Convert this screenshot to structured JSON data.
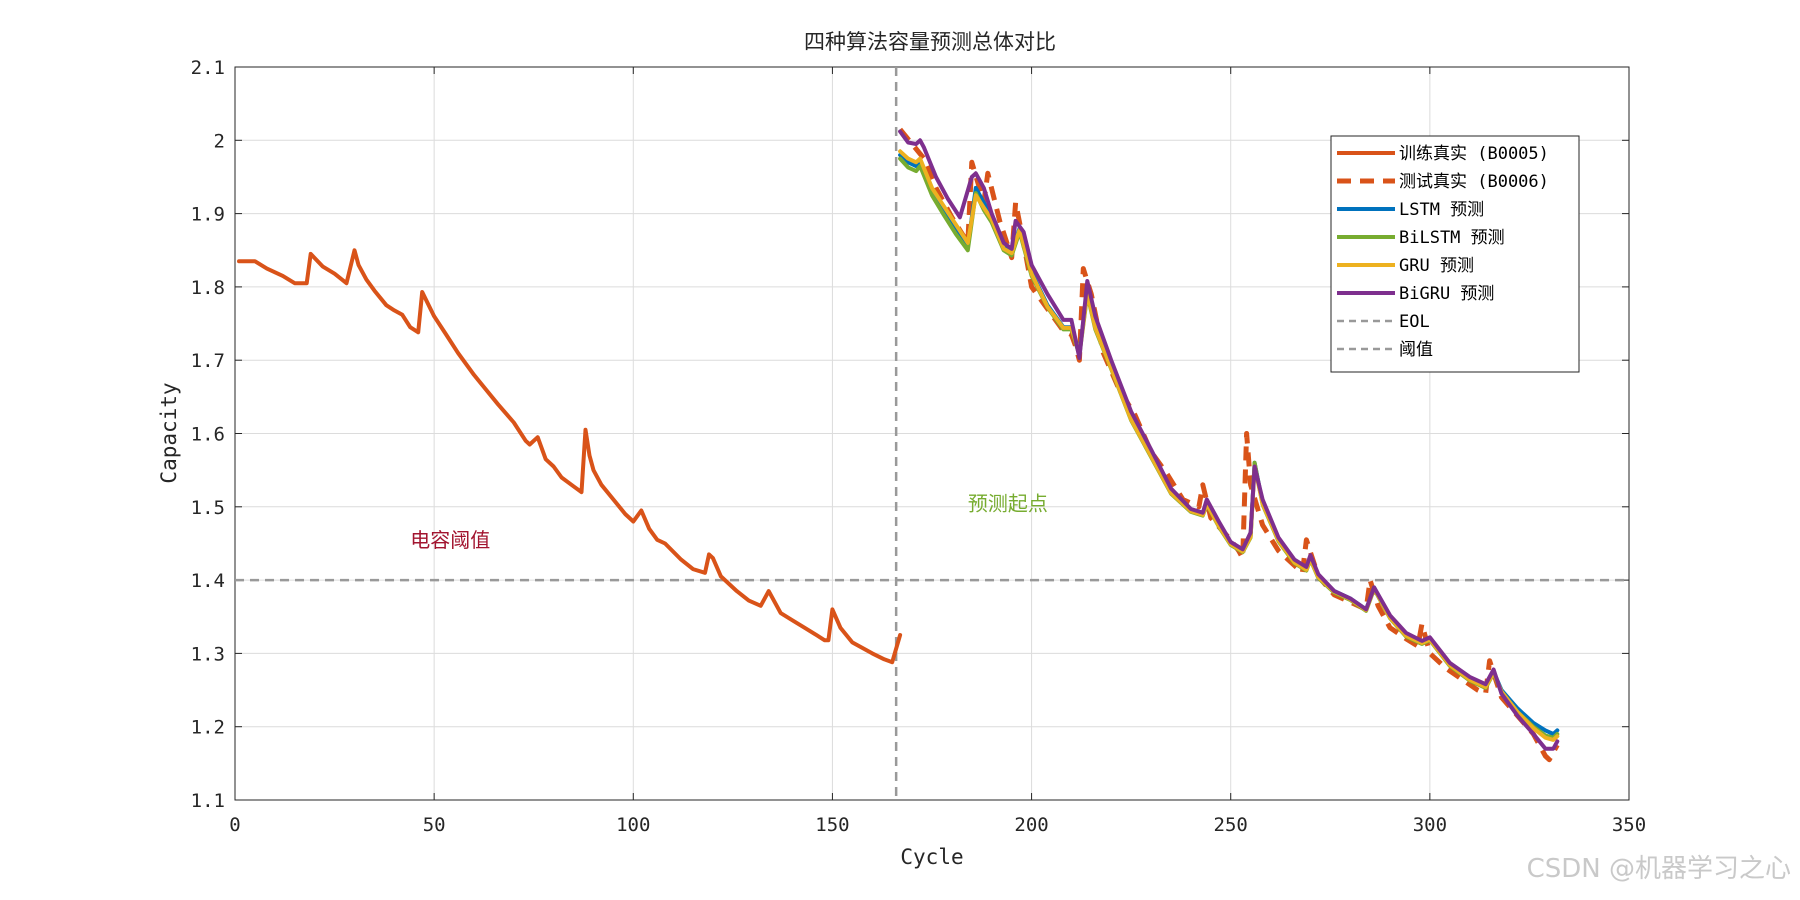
{
  "chart_data": {
    "type": "line",
    "title": "四种算法容量预测总体对比",
    "xlabel": "Cycle",
    "ylabel": "Capacity",
    "xlim": [
      0,
      350
    ],
    "ylim": [
      1.1,
      2.1
    ],
    "xticks": [
      0,
      50,
      100,
      150,
      200,
      250,
      300,
      350
    ],
    "yticks": [
      1.1,
      1.2,
      1.3,
      1.4,
      1.5,
      1.6,
      1.7,
      1.8,
      1.9,
      2.0,
      2.1
    ],
    "ytick_labels": [
      "1.1",
      "1.2",
      "1.3",
      "1.4",
      "1.5",
      "1.6",
      "1.7",
      "1.8",
      "1.9",
      "2",
      "2.1"
    ],
    "grid": true,
    "legend_position": "top-right",
    "annotations": [
      {
        "text": "电容阈值",
        "x": 44,
        "y": 1.445,
        "color": "#a2142f"
      },
      {
        "text": "预测起点",
        "x": 184,
        "y": 1.495,
        "color": "#77ac30"
      }
    ],
    "reference_lines": [
      {
        "name": "EOL",
        "orientation": "horizontal",
        "value": 1.4,
        "color": "#999999",
        "style": "dashed"
      },
      {
        "name": "阈值",
        "orientation": "vertical",
        "value": 166,
        "color": "#999999",
        "style": "dashed"
      }
    ],
    "series": [
      {
        "name": "训练真实 (B0005)",
        "color": "#d95319",
        "style": "solid",
        "x": [
          1,
          5,
          8,
          12,
          15,
          18,
          19,
          22,
          25,
          28,
          30,
          31,
          33,
          35,
          38,
          40,
          42,
          44,
          46,
          47,
          50,
          53,
          56,
          60,
          63,
          66,
          70,
          73,
          74,
          76,
          78,
          80,
          82,
          85,
          87,
          88,
          89,
          90,
          92,
          95,
          98,
          100,
          102,
          104,
          106,
          108,
          112,
          115,
          118,
          119,
          120,
          122,
          126,
          129,
          132,
          134,
          137,
          140,
          143,
          146,
          148,
          149,
          150,
          152,
          155,
          160,
          163,
          165,
          167
        ],
        "y": [
          1.835,
          1.835,
          1.825,
          1.815,
          1.805,
          1.805,
          1.845,
          1.828,
          1.818,
          1.805,
          1.85,
          1.83,
          1.81,
          1.795,
          1.775,
          1.768,
          1.762,
          1.745,
          1.738,
          1.793,
          1.76,
          1.735,
          1.71,
          1.68,
          1.66,
          1.64,
          1.615,
          1.59,
          1.585,
          1.595,
          1.565,
          1.555,
          1.54,
          1.528,
          1.52,
          1.605,
          1.57,
          1.55,
          1.53,
          1.51,
          1.49,
          1.48,
          1.495,
          1.47,
          1.455,
          1.45,
          1.428,
          1.415,
          1.41,
          1.435,
          1.43,
          1.405,
          1.385,
          1.372,
          1.365,
          1.385,
          1.355,
          1.345,
          1.335,
          1.325,
          1.318,
          1.318,
          1.36,
          1.335,
          1.315,
          1.3,
          1.292,
          1.288,
          1.325
        ]
      },
      {
        "name": "测试真实 (B0006)",
        "color": "#d95319",
        "style": "dashed",
        "x": [
          167,
          170,
          173,
          176,
          180,
          184,
          185,
          188,
          189,
          192,
          195,
          196,
          198,
          200,
          204,
          208,
          210,
          211,
          212,
          213,
          215,
          218,
          222,
          226,
          230,
          234,
          238,
          242,
          243,
          245,
          250,
          252,
          253,
          254,
          255,
          258,
          262,
          266,
          268,
          269,
          272,
          276,
          280,
          284,
          285,
          287,
          290,
          294,
          297,
          298,
          300,
          304,
          308,
          312,
          314,
          315,
          318,
          322,
          326,
          329,
          330,
          332
        ],
        "y": [
          2.015,
          1.995,
          1.975,
          1.935,
          1.895,
          1.86,
          1.97,
          1.915,
          1.955,
          1.89,
          1.84,
          1.915,
          1.86,
          1.8,
          1.77,
          1.74,
          1.735,
          1.72,
          1.7,
          1.825,
          1.79,
          1.71,
          1.66,
          1.625,
          1.575,
          1.545,
          1.51,
          1.5,
          1.53,
          1.485,
          1.455,
          1.44,
          1.43,
          1.6,
          1.53,
          1.475,
          1.44,
          1.42,
          1.41,
          1.455,
          1.405,
          1.38,
          1.37,
          1.36,
          1.4,
          1.365,
          1.335,
          1.32,
          1.31,
          1.34,
          1.3,
          1.28,
          1.265,
          1.25,
          1.245,
          1.29,
          1.24,
          1.215,
          1.19,
          1.16,
          1.155,
          1.175
        ]
      },
      {
        "name": "LSTM 预测",
        "color": "#0072bd",
        "style": "solid",
        "x": [
          167,
          169,
          171,
          172,
          175,
          178,
          181,
          184,
          186,
          188,
          190,
          193,
          195,
          197,
          200,
          204,
          208,
          210,
          212,
          214,
          216,
          220,
          225,
          230,
          235,
          240,
          243,
          244,
          247,
          250,
          253,
          255,
          256,
          258,
          262,
          266,
          269,
          270,
          272,
          276,
          280,
          284,
          286,
          290,
          294,
          298,
          300,
          305,
          310,
          314,
          316,
          318,
          322,
          326,
          329,
          331,
          332
        ],
        "y": [
          1.98,
          1.97,
          1.965,
          1.97,
          1.93,
          1.905,
          1.88,
          1.855,
          1.935,
          1.915,
          1.895,
          1.855,
          1.85,
          1.88,
          1.82,
          1.775,
          1.745,
          1.745,
          1.71,
          1.795,
          1.745,
          1.69,
          1.62,
          1.57,
          1.52,
          1.495,
          1.49,
          1.505,
          1.475,
          1.45,
          1.44,
          1.46,
          1.56,
          1.505,
          1.455,
          1.425,
          1.415,
          1.43,
          1.405,
          1.385,
          1.375,
          1.36,
          1.39,
          1.35,
          1.325,
          1.315,
          1.32,
          1.285,
          1.265,
          1.255,
          1.275,
          1.25,
          1.225,
          1.205,
          1.195,
          1.19,
          1.195
        ]
      },
      {
        "name": "BiLSTM 预测",
        "color": "#77ac30",
        "style": "solid",
        "x": [
          167,
          169,
          171,
          172,
          175,
          178,
          181,
          184,
          186,
          188,
          190,
          193,
          195,
          197,
          200,
          204,
          208,
          210,
          212,
          214,
          216,
          220,
          225,
          230,
          235,
          240,
          243,
          244,
          247,
          250,
          253,
          255,
          256,
          258,
          262,
          266,
          269,
          270,
          272,
          276,
          280,
          284,
          286,
          290,
          294,
          298,
          300,
          305,
          310,
          314,
          316,
          318,
          322,
          326,
          329,
          331,
          332
        ],
        "y": [
          1.975,
          1.963,
          1.958,
          1.965,
          1.925,
          1.898,
          1.872,
          1.85,
          1.928,
          1.905,
          1.888,
          1.85,
          1.843,
          1.875,
          1.815,
          1.772,
          1.742,
          1.742,
          1.707,
          1.79,
          1.742,
          1.688,
          1.618,
          1.568,
          1.518,
          1.493,
          1.488,
          1.503,
          1.473,
          1.448,
          1.438,
          1.458,
          1.56,
          1.503,
          1.453,
          1.423,
          1.413,
          1.428,
          1.403,
          1.383,
          1.373,
          1.358,
          1.388,
          1.348,
          1.323,
          1.313,
          1.318,
          1.283,
          1.263,
          1.253,
          1.273,
          1.247,
          1.22,
          1.2,
          1.188,
          1.185,
          1.19
        ]
      },
      {
        "name": "GRU 预测",
        "color": "#edb120",
        "style": "solid",
        "x": [
          167,
          169,
          171,
          172,
          175,
          178,
          181,
          184,
          186,
          188,
          190,
          193,
          195,
          197,
          200,
          204,
          208,
          210,
          212,
          214,
          216,
          220,
          225,
          230,
          235,
          240,
          243,
          244,
          247,
          250,
          253,
          255,
          256,
          258,
          262,
          266,
          269,
          270,
          272,
          276,
          280,
          284,
          286,
          290,
          294,
          298,
          300,
          305,
          310,
          314,
          316,
          318,
          322,
          326,
          329,
          331,
          332
        ],
        "y": [
          1.985,
          1.975,
          1.97,
          1.975,
          1.935,
          1.91,
          1.885,
          1.86,
          1.925,
          1.908,
          1.892,
          1.852,
          1.846,
          1.878,
          1.818,
          1.773,
          1.744,
          1.744,
          1.709,
          1.792,
          1.744,
          1.689,
          1.619,
          1.569,
          1.519,
          1.494,
          1.489,
          1.504,
          1.474,
          1.449,
          1.439,
          1.459,
          1.555,
          1.504,
          1.454,
          1.424,
          1.414,
          1.429,
          1.404,
          1.384,
          1.374,
          1.359,
          1.389,
          1.349,
          1.324,
          1.314,
          1.319,
          1.284,
          1.264,
          1.254,
          1.274,
          1.248,
          1.22,
          1.198,
          1.185,
          1.182,
          1.187
        ]
      },
      {
        "name": "BiGRU 预测",
        "color": "#7e2f8e",
        "style": "solid",
        "x": [
          167,
          169,
          171,
          172,
          173,
          176,
          179,
          182,
          185,
          186,
          188,
          190,
          193,
          195,
          196,
          198,
          200,
          204,
          208,
          210,
          212,
          214,
          216,
          220,
          225,
          230,
          235,
          240,
          243,
          244,
          247,
          250,
          253,
          255,
          256,
          258,
          262,
          266,
          269,
          270,
          272,
          276,
          280,
          284,
          286,
          290,
          294,
          298,
          300,
          305,
          310,
          314,
          316,
          318,
          322,
          326,
          329,
          331,
          332
        ],
        "y": [
          2.012,
          1.997,
          1.995,
          2.0,
          1.99,
          1.95,
          1.92,
          1.895,
          1.95,
          1.955,
          1.935,
          1.9,
          1.86,
          1.852,
          1.89,
          1.875,
          1.83,
          1.79,
          1.755,
          1.755,
          1.703,
          1.808,
          1.76,
          1.7,
          1.63,
          1.578,
          1.525,
          1.497,
          1.492,
          1.51,
          1.48,
          1.452,
          1.442,
          1.465,
          1.555,
          1.51,
          1.458,
          1.428,
          1.418,
          1.434,
          1.408,
          1.385,
          1.375,
          1.36,
          1.39,
          1.352,
          1.328,
          1.317,
          1.322,
          1.287,
          1.268,
          1.258,
          1.278,
          1.245,
          1.215,
          1.19,
          1.17,
          1.17,
          1.18
        ]
      }
    ]
  },
  "watermark": "CSDN @机器学习之心"
}
